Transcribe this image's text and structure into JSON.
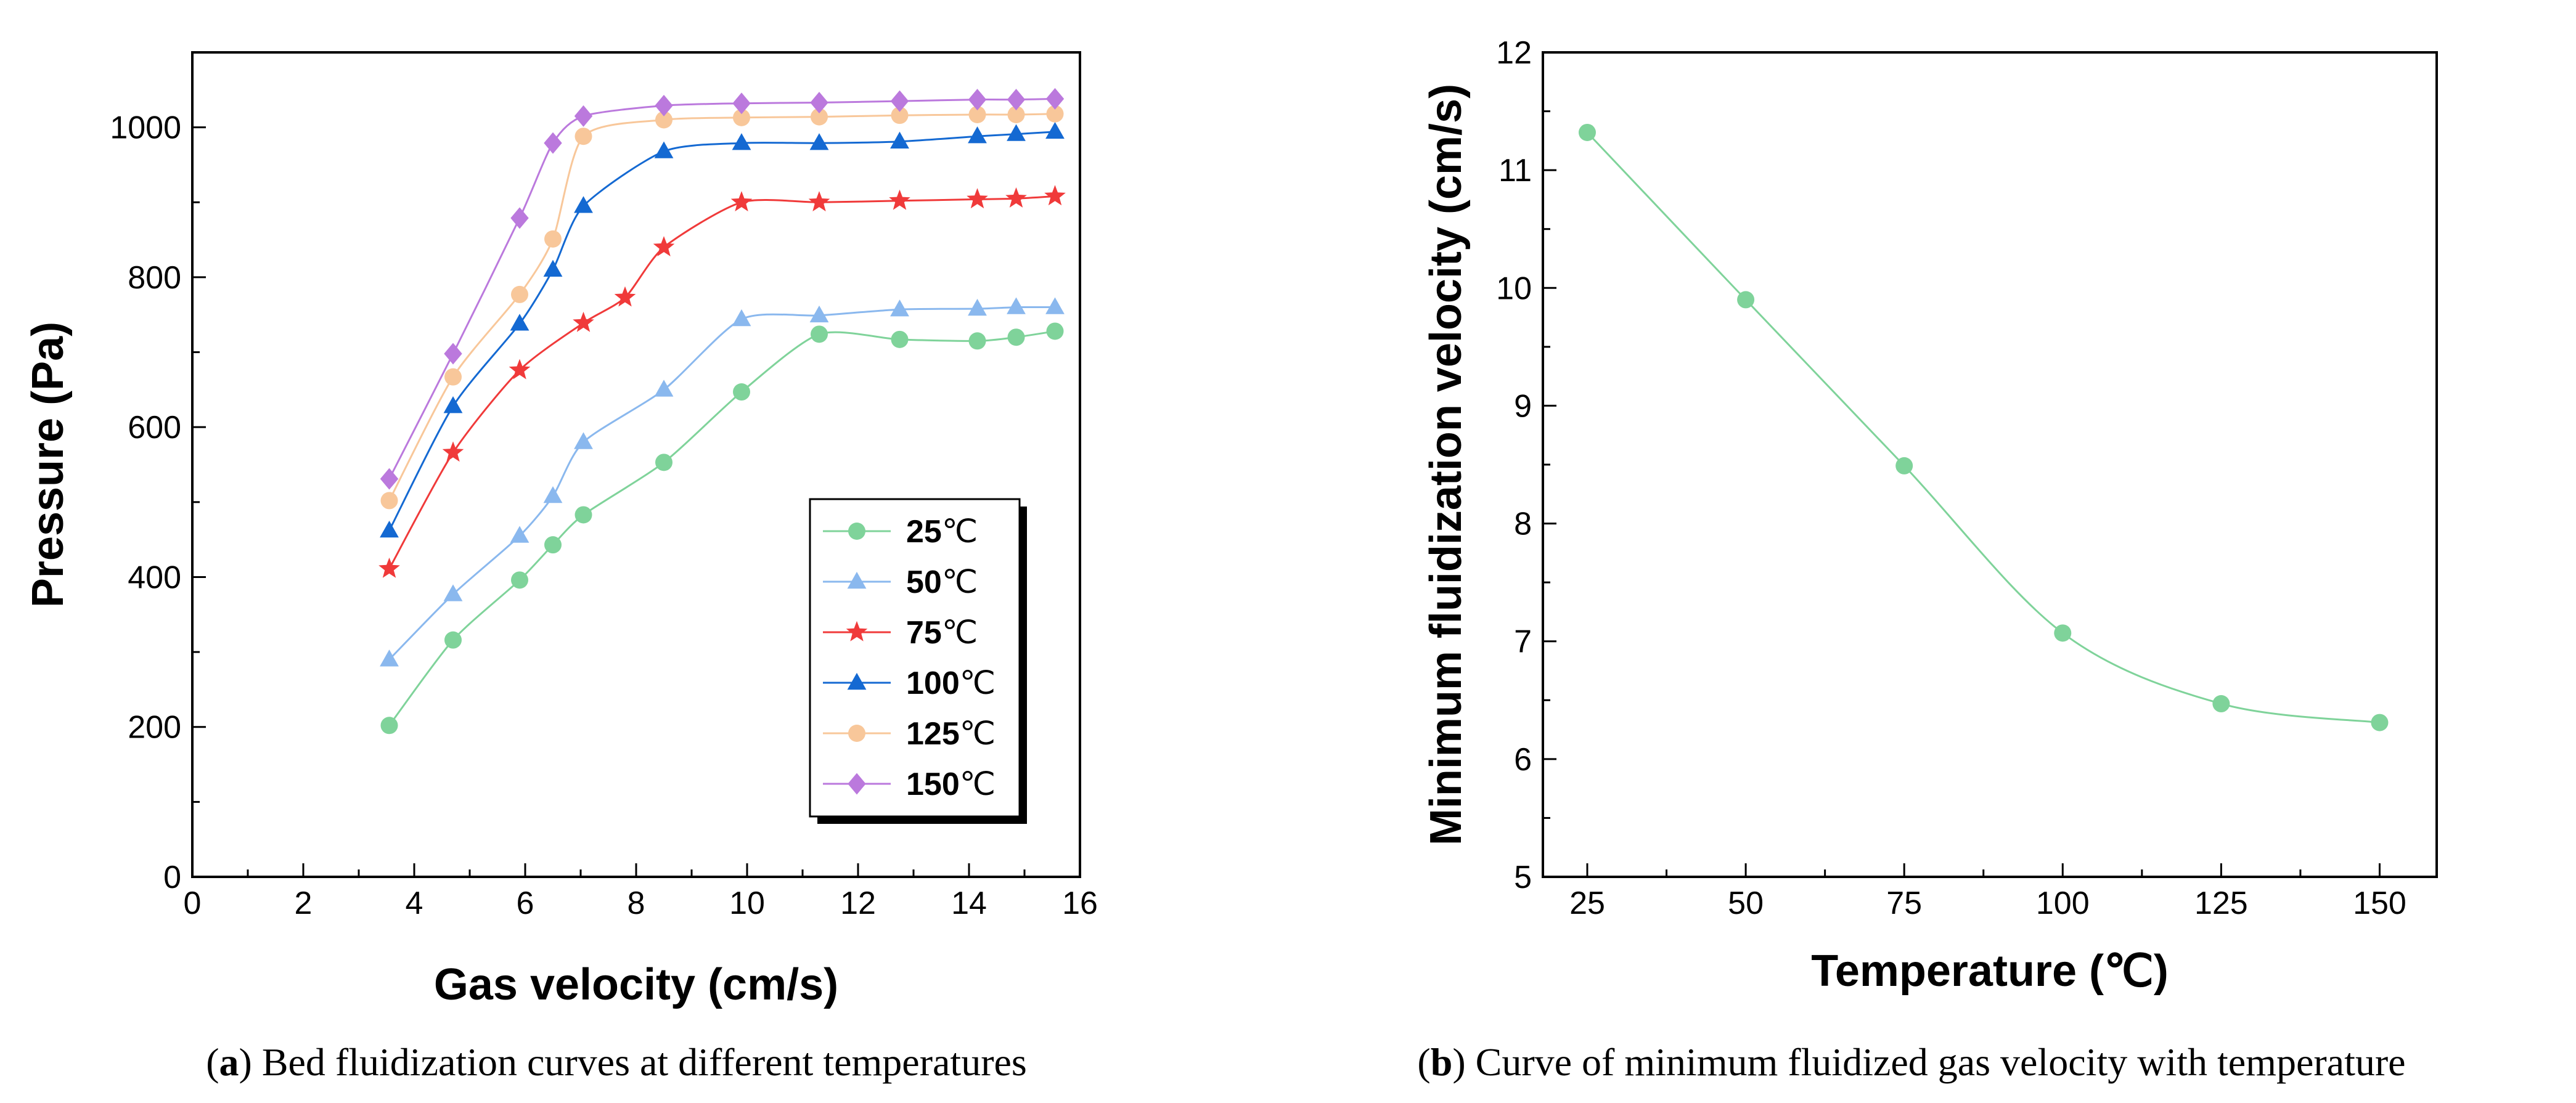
{
  "chart_data": [
    {
      "id": "a",
      "type": "line",
      "xlabel": "Gas velocity (cm/s)",
      "ylabel": "Pressure (Pa)",
      "xlim": [
        0,
        16
      ],
      "ylim": [
        0,
        1100
      ],
      "xticks": [
        "0",
        "2",
        "4",
        "6",
        "8",
        "10",
        "12",
        "14",
        "16"
      ],
      "yticks": [
        "0",
        "200",
        "400",
        "600",
        "800",
        "1000"
      ],
      "caption_label": "a",
      "caption_text": ") Bed fluidization curves at different temperatures",
      "caption_open": "(",
      "legend_position": "lower-right",
      "series": [
        {
          "name": "25",
          "unit": "℃",
          "color": "#7fd39a",
          "marker": "circle",
          "x": [
            3.55,
            4.7,
            5.9,
            6.5,
            7.05,
            8.5,
            9.9,
            11.3,
            12.75,
            14.15,
            14.85,
            15.55
          ],
          "y": [
            202,
            316,
            396,
            443,
            483,
            553,
            647,
            724,
            717,
            715,
            720,
            728
          ]
        },
        {
          "name": "50",
          "unit": "℃",
          "color": "#8ab8ee",
          "marker": "triangle",
          "x": [
            3.55,
            4.7,
            5.9,
            6.5,
            7.05,
            8.5,
            9.9,
            11.3,
            12.75,
            14.15,
            14.85,
            15.55
          ],
          "y": [
            290,
            377,
            455,
            508,
            580,
            650,
            744,
            749,
            757,
            758,
            760,
            760
          ]
        },
        {
          "name": "75",
          "unit": "℃",
          "color": "#f03a3a",
          "marker": "star",
          "x": [
            3.55,
            4.7,
            5.9,
            7.05,
            7.8,
            8.5,
            9.9,
            11.3,
            12.75,
            14.15,
            14.85,
            15.55
          ],
          "y": [
            411,
            566,
            676,
            739,
            773,
            840,
            900,
            900,
            902,
            904,
            905,
            908
          ]
        },
        {
          "name": "100",
          "unit": "℃",
          "color": "#1469d2",
          "marker": "triangle",
          "x": [
            3.55,
            4.7,
            5.9,
            6.5,
            7.05,
            8.5,
            9.9,
            11.3,
            12.75,
            14.15,
            14.85,
            15.55
          ],
          "y": [
            462,
            628,
            738,
            810,
            895,
            968,
            979,
            979,
            981,
            988,
            991,
            994
          ]
        },
        {
          "name": "125",
          "unit": "℃",
          "color": "#f8c79a",
          "marker": "circle",
          "x": [
            3.55,
            4.7,
            5.9,
            6.5,
            7.05,
            8.5,
            9.9,
            11.3,
            12.75,
            14.15,
            14.85,
            15.55
          ],
          "y": [
            502,
            667,
            777,
            851,
            988,
            1010,
            1013,
            1014,
            1016,
            1017,
            1017,
            1018
          ]
        },
        {
          "name": "150",
          "unit": "℃",
          "color": "#bb79dd",
          "marker": "diamond",
          "x": [
            3.55,
            4.7,
            5.9,
            6.5,
            7.05,
            8.5,
            9.9,
            11.3,
            12.75,
            14.15,
            14.85,
            15.55
          ],
          "y": [
            531,
            698,
            879,
            979,
            1015,
            1029,
            1032,
            1033,
            1035,
            1037,
            1037,
            1038
          ]
        }
      ]
    },
    {
      "id": "b",
      "type": "line",
      "xlabel": "Temperature (℃)",
      "ylabel": "Minimum fluidization velocity (cm/s)",
      "xlim": [
        18,
        159
      ],
      "ylim": [
        5,
        12
      ],
      "xticks": [
        "25",
        "50",
        "75",
        "100",
        "125",
        "150"
      ],
      "yticks": [
        "5",
        "6",
        "7",
        "8",
        "9",
        "10",
        "11",
        "12"
      ],
      "caption_label": "b",
      "caption_text": ") Curve of minimum fluidized gas velocity with temperature",
      "caption_open": "(",
      "series": [
        {
          "name": "Minimum fluidization velocity",
          "color": "#7fd39a",
          "marker": "circle",
          "x": [
            25,
            50,
            75,
            100,
            125,
            150
          ],
          "y": [
            11.32,
            9.9,
            8.49,
            7.07,
            6.47,
            6.31
          ]
        }
      ]
    }
  ]
}
